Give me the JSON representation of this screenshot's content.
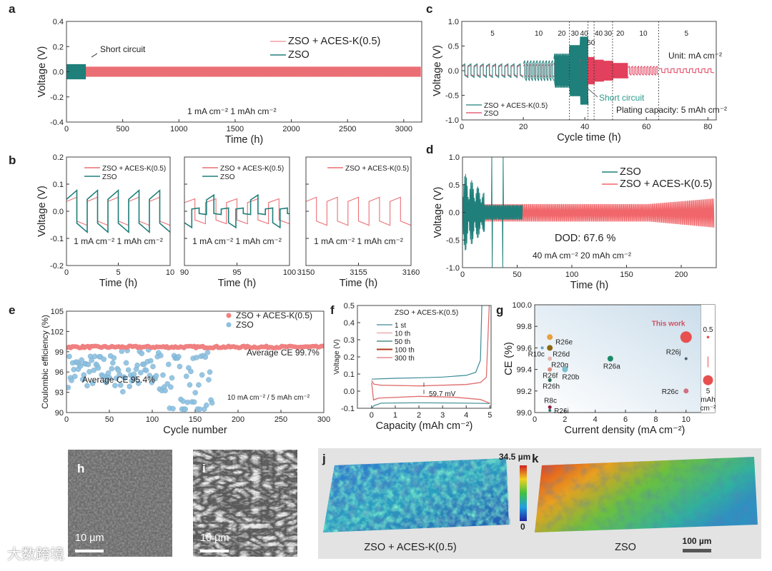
{
  "colors": {
    "teal": "#1f7f7a",
    "pink": "#ea6f74",
    "red": "#e2405c",
    "blue": "#6aaad6"
  },
  "watermark": "大数跨境",
  "chart_data": [
    {
      "id": "a",
      "panel_label": "a",
      "type": "line",
      "xlabel": "Time (h)",
      "ylabel": "Voltage (V)",
      "xlim": [
        0,
        3160
      ],
      "ylim": [
        -0.4,
        0.4
      ],
      "xticks": [
        0,
        500,
        1000,
        1500,
        2000,
        2500,
        3000
      ],
      "yticks": [
        -0.4,
        -0.2,
        0.0,
        0.2,
        0.4
      ],
      "series": [
        {
          "name": "ZSO + ACES-K(0.5)",
          "color": "#ea6f74",
          "start": 0,
          "end": 3150,
          "amplitude": 0.04,
          "period": 2
        },
        {
          "name": "ZSO",
          "color": "#1f7f7a",
          "start": 0,
          "end": 170,
          "amplitude": 0.06,
          "period": 2
        }
      ],
      "annotations": [
        "Short circuit",
        "1 mA cm⁻²   1 mAh cm⁻²"
      ],
      "legend": "top-right"
    },
    {
      "id": "b",
      "panel_label": "b",
      "type": "line",
      "xlabel": "Time (h)",
      "ylabel": "Voltage (V)",
      "ylim": [
        -0.2,
        0.2
      ],
      "yticks": [
        -0.2,
        -0.1,
        0.0,
        0.1,
        0.2
      ],
      "subplots": [
        {
          "xlim": [
            0,
            10
          ],
          "xticks": [
            0,
            5,
            10
          ],
          "legend": [
            "ZSO + ACES-K(0.5)",
            "ZSO"
          ],
          "annotation": "1 mA cm⁻²   1 mAh cm⁻²",
          "series": [
            {
              "name": "ZSO + ACES-K(0.5)",
              "color": "#ea6f74",
              "amplitude": 0.045,
              "period": 2
            },
            {
              "name": "ZSO",
              "color": "#1f7f7a",
              "amplitude": 0.055,
              "period": 2
            }
          ]
        },
        {
          "xlim": [
            90,
            100
          ],
          "xticks": [
            90,
            95,
            100
          ],
          "legend": [
            "ZSO + ACES-K(0.5)",
            "ZSO"
          ],
          "annotation": "1 mA cm⁻²   1 mAh cm⁻²",
          "series": [
            {
              "name": "ZSO + ACES-K(0.5)",
              "color": "#ea6f74",
              "amplitude": 0.04,
              "period": 2
            },
            {
              "name": "ZSO",
              "color": "#1f7f7a",
              "amplitude": 0.01,
              "period": 1.4
            }
          ]
        },
        {
          "xlim": [
            3150,
            3160
          ],
          "xticks": [
            3150,
            3155,
            3160
          ],
          "legend": [
            "ZSO + ACES-K(0.5)"
          ],
          "annotation": "1 mA cm⁻²   1 mAh cm⁻²",
          "series": [
            {
              "name": "ZSO + ACES-K(0.5)",
              "color": "#ea6f74",
              "amplitude": 0.045,
              "period": 2
            }
          ]
        }
      ]
    },
    {
      "id": "c",
      "panel_label": "c",
      "type": "line",
      "xlabel": "Cycle time (h)",
      "ylabel": "Voltage (V)",
      "xlim": [
        0,
        82.7
      ],
      "ylim": [
        -1.0,
        1.0
      ],
      "xticks": [
        0,
        20,
        40,
        60,
        80
      ],
      "yticks": [
        -1.0,
        -0.5,
        0.0,
        0.5,
        1.0
      ],
      "rate_segments": [
        {
          "current": "5",
          "start": 0,
          "end": 20,
          "period": 2,
          "aces_amp": 0.12,
          "zso_amp": 0.1
        },
        {
          "current": "10",
          "start": 20,
          "end": 30,
          "period": 1,
          "aces_amp": 0.18,
          "zso_amp": 0.12
        },
        {
          "current": "20",
          "start": 30,
          "end": 35,
          "period": 0.5,
          "aces_amp": 0.3,
          "zso_amp": 0.15
        },
        {
          "current": "30",
          "start": 35,
          "end": 38.5,
          "period": 0.33,
          "aces_amp": 0.45,
          "zso_amp": 0.2
        },
        {
          "current": "40",
          "start": 38.5,
          "end": 41,
          "period": 0.25,
          "aces_amp": 0.6,
          "zso_amp": 0.22
        },
        {
          "current": "50",
          "start": 41,
          "end": 43,
          "period": 0.2,
          "aces_amp": null,
          "zso_amp": 0.25
        },
        {
          "current": "40",
          "start": 43,
          "end": 46,
          "period": 0.25,
          "aces_amp": null,
          "zso_amp": 0.2
        },
        {
          "current": "30",
          "start": 46,
          "end": 49,
          "period": 0.33,
          "aces_amp": null,
          "zso_amp": 0.18
        },
        {
          "current": "20",
          "start": 49,
          "end": 54,
          "period": 0.5,
          "aces_amp": null,
          "zso_amp": 0.14
        },
        {
          "current": "10",
          "start": 54,
          "end": 64,
          "period": 1,
          "aces_amp": null,
          "zso_amp": 0.08
        },
        {
          "current": "5",
          "start": 64,
          "end": 82,
          "period": 2,
          "aces_amp": null,
          "zso_amp": 0.04
        }
      ],
      "dividers": [
        35,
        41,
        43,
        49,
        64
      ],
      "series": [
        {
          "name": "ZSO + ACES-K(0.5)",
          "color": "#1f7f7a"
        },
        {
          "name": "ZSO",
          "color": "#e2405c"
        }
      ],
      "annotations": {
        "unit": "Unit: mA cm⁻²",
        "short": "Short circuit",
        "plating": "Plating capacity: 5 mAh cm⁻²"
      },
      "legend": "bottom-left"
    },
    {
      "id": "d",
      "panel_label": "d",
      "type": "line",
      "xlabel": "Time (h)",
      "ylabel": "Voltage (V)",
      "xlim": [
        0,
        232
      ],
      "ylim": [
        -1.0,
        1.0
      ],
      "xticks": [
        0,
        50,
        100,
        150,
        200
      ],
      "yticks": [
        -1.0,
        -0.5,
        0.0,
        0.5,
        1.0
      ],
      "series": [
        {
          "name": "ZSO",
          "color": "#1f7f7a",
          "start": 0,
          "end": 55,
          "amplitude": 0.14
        },
        {
          "name": "ZSO + ACES-K(0.5)",
          "color": "#f0666a",
          "start": 0,
          "end": 230,
          "amplitude": 0.15
        }
      ],
      "annotations": [
        "DOD: 67.6 %",
        "40 mA cm⁻²   20 mAh cm⁻²"
      ],
      "legend": "top-right"
    },
    {
      "id": "e",
      "panel_label": "e",
      "type": "scatter",
      "xlabel": "Cycle number",
      "ylabel": "Coulombic efficiency (%)",
      "xlim": [
        0,
        300
      ],
      "ylim": [
        90,
        105
      ],
      "xticks": [
        0,
        50,
        100,
        150,
        200,
        250,
        300
      ],
      "yticks": [
        90,
        93,
        96,
        99,
        102,
        105
      ],
      "series": [
        {
          "name": "ZSO + ACES-K(0.5)",
          "color": "#f08080",
          "cycles": [
            1,
            300
          ],
          "mean_ce": 99.7
        },
        {
          "name": "ZSO",
          "color": "#8cc0e0",
          "cycles": [
            1,
            170
          ],
          "mean_ce": 95.4
        }
      ],
      "annotations": [
        "Average CE 99.7%",
        "Average CE 95.4%",
        "10 mA cm⁻² / 5 mAh cm⁻²"
      ],
      "legend": "top-right"
    },
    {
      "id": "f",
      "panel_label": "f",
      "type": "line",
      "title": "ZSO + ACES-K(0.5)",
      "xlabel": "Capacity (mAh cm⁻²)",
      "ylabel": "Voltage (V)",
      "xlim": [
        -0.6,
        5.05
      ],
      "ylim": [
        -0.1,
        0.5
      ],
      "xticks": [
        0,
        1,
        2,
        3,
        4,
        5
      ],
      "yticks": [
        -0.1,
        0.0,
        0.1,
        0.2,
        0.3,
        0.4,
        0.5
      ],
      "series": [
        {
          "name": "1 st",
          "color": "#3a8a96",
          "x": [
            0,
            1,
            2,
            3,
            4,
            4.4,
            4.6,
            4.66
          ],
          "y": [
            0.07,
            0.075,
            0.078,
            0.082,
            0.092,
            0.11,
            0.18,
            0.5
          ],
          "x2": [
            0,
            0.1,
            0.4,
            2,
            4,
            5
          ],
          "y2": [
            -0.1,
            -0.085,
            -0.07,
            -0.068,
            -0.07,
            -0.072
          ]
        },
        {
          "name": "10 th",
          "color": "#e8a0a0",
          "x": [
            0,
            0.1,
            0.4,
            2,
            4,
            4.6,
            4.85,
            4.97
          ],
          "y": [
            0.06,
            0.04,
            0.034,
            0.03,
            0.038,
            0.05,
            0.08,
            0.5
          ],
          "x2": [
            0,
            0.08,
            0.3,
            2,
            3.5,
            4.6,
            5
          ],
          "y2": [
            0.05,
            -0.05,
            -0.04,
            -0.03,
            -0.035,
            -0.048,
            -0.07
          ]
        },
        {
          "name": "50 th",
          "color": "#2a7a70",
          "x": [],
          "y": []
        },
        {
          "name": "100 th",
          "color": "#b03a1a",
          "x": [],
          "y": []
        },
        {
          "name": "300 th",
          "color": "#e07070",
          "x": [
            0,
            0.1,
            0.4,
            2,
            4,
            4.6,
            4.85,
            4.97
          ],
          "y": [
            0.062,
            0.041,
            0.035,
            0.031,
            0.039,
            0.051,
            0.081,
            0.5
          ],
          "x2": [
            0,
            0.08,
            0.3,
            2,
            3.5,
            4.6,
            5
          ],
          "y2": [
            0.05,
            -0.052,
            -0.041,
            -0.031,
            -0.036,
            -0.049,
            -0.071
          ]
        }
      ],
      "annotations": [
        "59.7 mV"
      ],
      "legend": "top-left"
    },
    {
      "id": "g",
      "panel_label": "g",
      "type": "scatter",
      "xlabel": "Current density (mA cm⁻²)",
      "ylabel": "CE (%)",
      "xlim": [
        0,
        11.9
      ],
      "ylim": [
        99.0,
        100.0
      ],
      "xticks": [
        0,
        2,
        4,
        6,
        8,
        10
      ],
      "yticks": [
        99.0,
        99.2,
        99.4,
        99.6,
        99.8,
        100.0
      ],
      "points": [
        {
          "label": "R26e",
          "x": 1,
          "y": 99.7,
          "color": "#e8a040",
          "size": 4
        },
        {
          "label": "R10c",
          "x": 0.5,
          "y": 99.6,
          "color": "#6a9fc0",
          "size": 2
        },
        {
          "label": "R26d",
          "x": 1,
          "y": 99.6,
          "color": "#8a6a10",
          "size": 4
        },
        {
          "label": "R20g",
          "x": 1,
          "y": 99.5,
          "color": "#e8b8b0",
          "size": 3
        },
        {
          "label": "R26f",
          "x": 1,
          "y": 99.4,
          "color": "#e08a7a",
          "size": 3
        },
        {
          "label": "R20b",
          "x": 2,
          "y": 99.4,
          "color": "#7ac0d0",
          "size": 4
        },
        {
          "label": "R26h",
          "x": 1,
          "y": 99.3,
          "color": "#2a6a50",
          "size": 2.5
        },
        {
          "label": "R26a",
          "x": 5,
          "y": 99.5,
          "color": "#1a8a6a",
          "size": 4
        },
        {
          "label": "R26j",
          "x": 10,
          "y": 99.5,
          "color": "#506070",
          "size": 2
        },
        {
          "label": "This work",
          "x": 10,
          "y": 99.7,
          "color": "#e85050",
          "size": 8
        },
        {
          "label": "R26c",
          "x": 10,
          "y": 99.2,
          "color": "#d07080",
          "size": 3.5
        },
        {
          "label": "R8c",
          "x": 1,
          "y": 99.05,
          "color": "#902040",
          "size": 2.5
        },
        {
          "label": "R26i",
          "x": 1,
          "y": 99.02,
          "color": "#307070",
          "size": 2
        }
      ],
      "capacity_legend": {
        "small": "0.5",
        "large": "5",
        "unit": "mAh",
        "unit2": "cm⁻²"
      }
    }
  ],
  "images": {
    "h": {
      "label": "h",
      "scale": "10 µm"
    },
    "i": {
      "label": "i",
      "scale": "10 µm"
    },
    "j": {
      "label": "j",
      "caption": "ZSO + ACES-K(0.5)"
    },
    "k": {
      "label": "k",
      "caption": "ZSO",
      "scale": "100 µm"
    },
    "colorbar": {
      "max": "34.5 µm",
      "min": "0"
    }
  }
}
